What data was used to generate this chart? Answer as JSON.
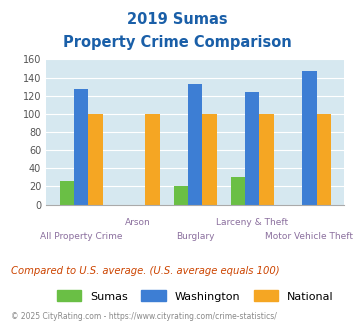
{
  "title_line1": "2019 Sumas",
  "title_line2": "Property Crime Comparison",
  "categories": [
    "All Property Crime",
    "Arson",
    "Burglary",
    "Larceny & Theft",
    "Motor Vehicle Theft"
  ],
  "sumas_values": [
    26,
    0,
    20,
    30,
    0
  ],
  "washington_values": [
    127,
    0,
    133,
    124,
    147
  ],
  "national_values": [
    100,
    100,
    100,
    100,
    100
  ],
  "sumas_color": "#6abf45",
  "washington_color": "#3d7ed4",
  "national_color": "#f5a623",
  "bg_color": "#d6e8f0",
  "title_color": "#1a5fa8",
  "xlabel_color": "#8b6f9e",
  "ylabel_max": 160,
  "ylabel_ticks": [
    0,
    20,
    40,
    60,
    80,
    100,
    120,
    140,
    160
  ],
  "footnote": "Compared to U.S. average. (U.S. average equals 100)",
  "footnote_color": "#cc4400",
  "credit": "© 2025 CityRating.com - https://www.cityrating.com/crime-statistics/",
  "credit_color": "#888888",
  "legend_labels": [
    "Sumas",
    "Washington",
    "National"
  ],
  "x_label_top": [
    "",
    "Arson",
    "",
    "Larceny & Theft",
    ""
  ],
  "x_label_bottom": [
    "All Property Crime",
    "",
    "Burglary",
    "",
    "Motor Vehicle Theft"
  ]
}
